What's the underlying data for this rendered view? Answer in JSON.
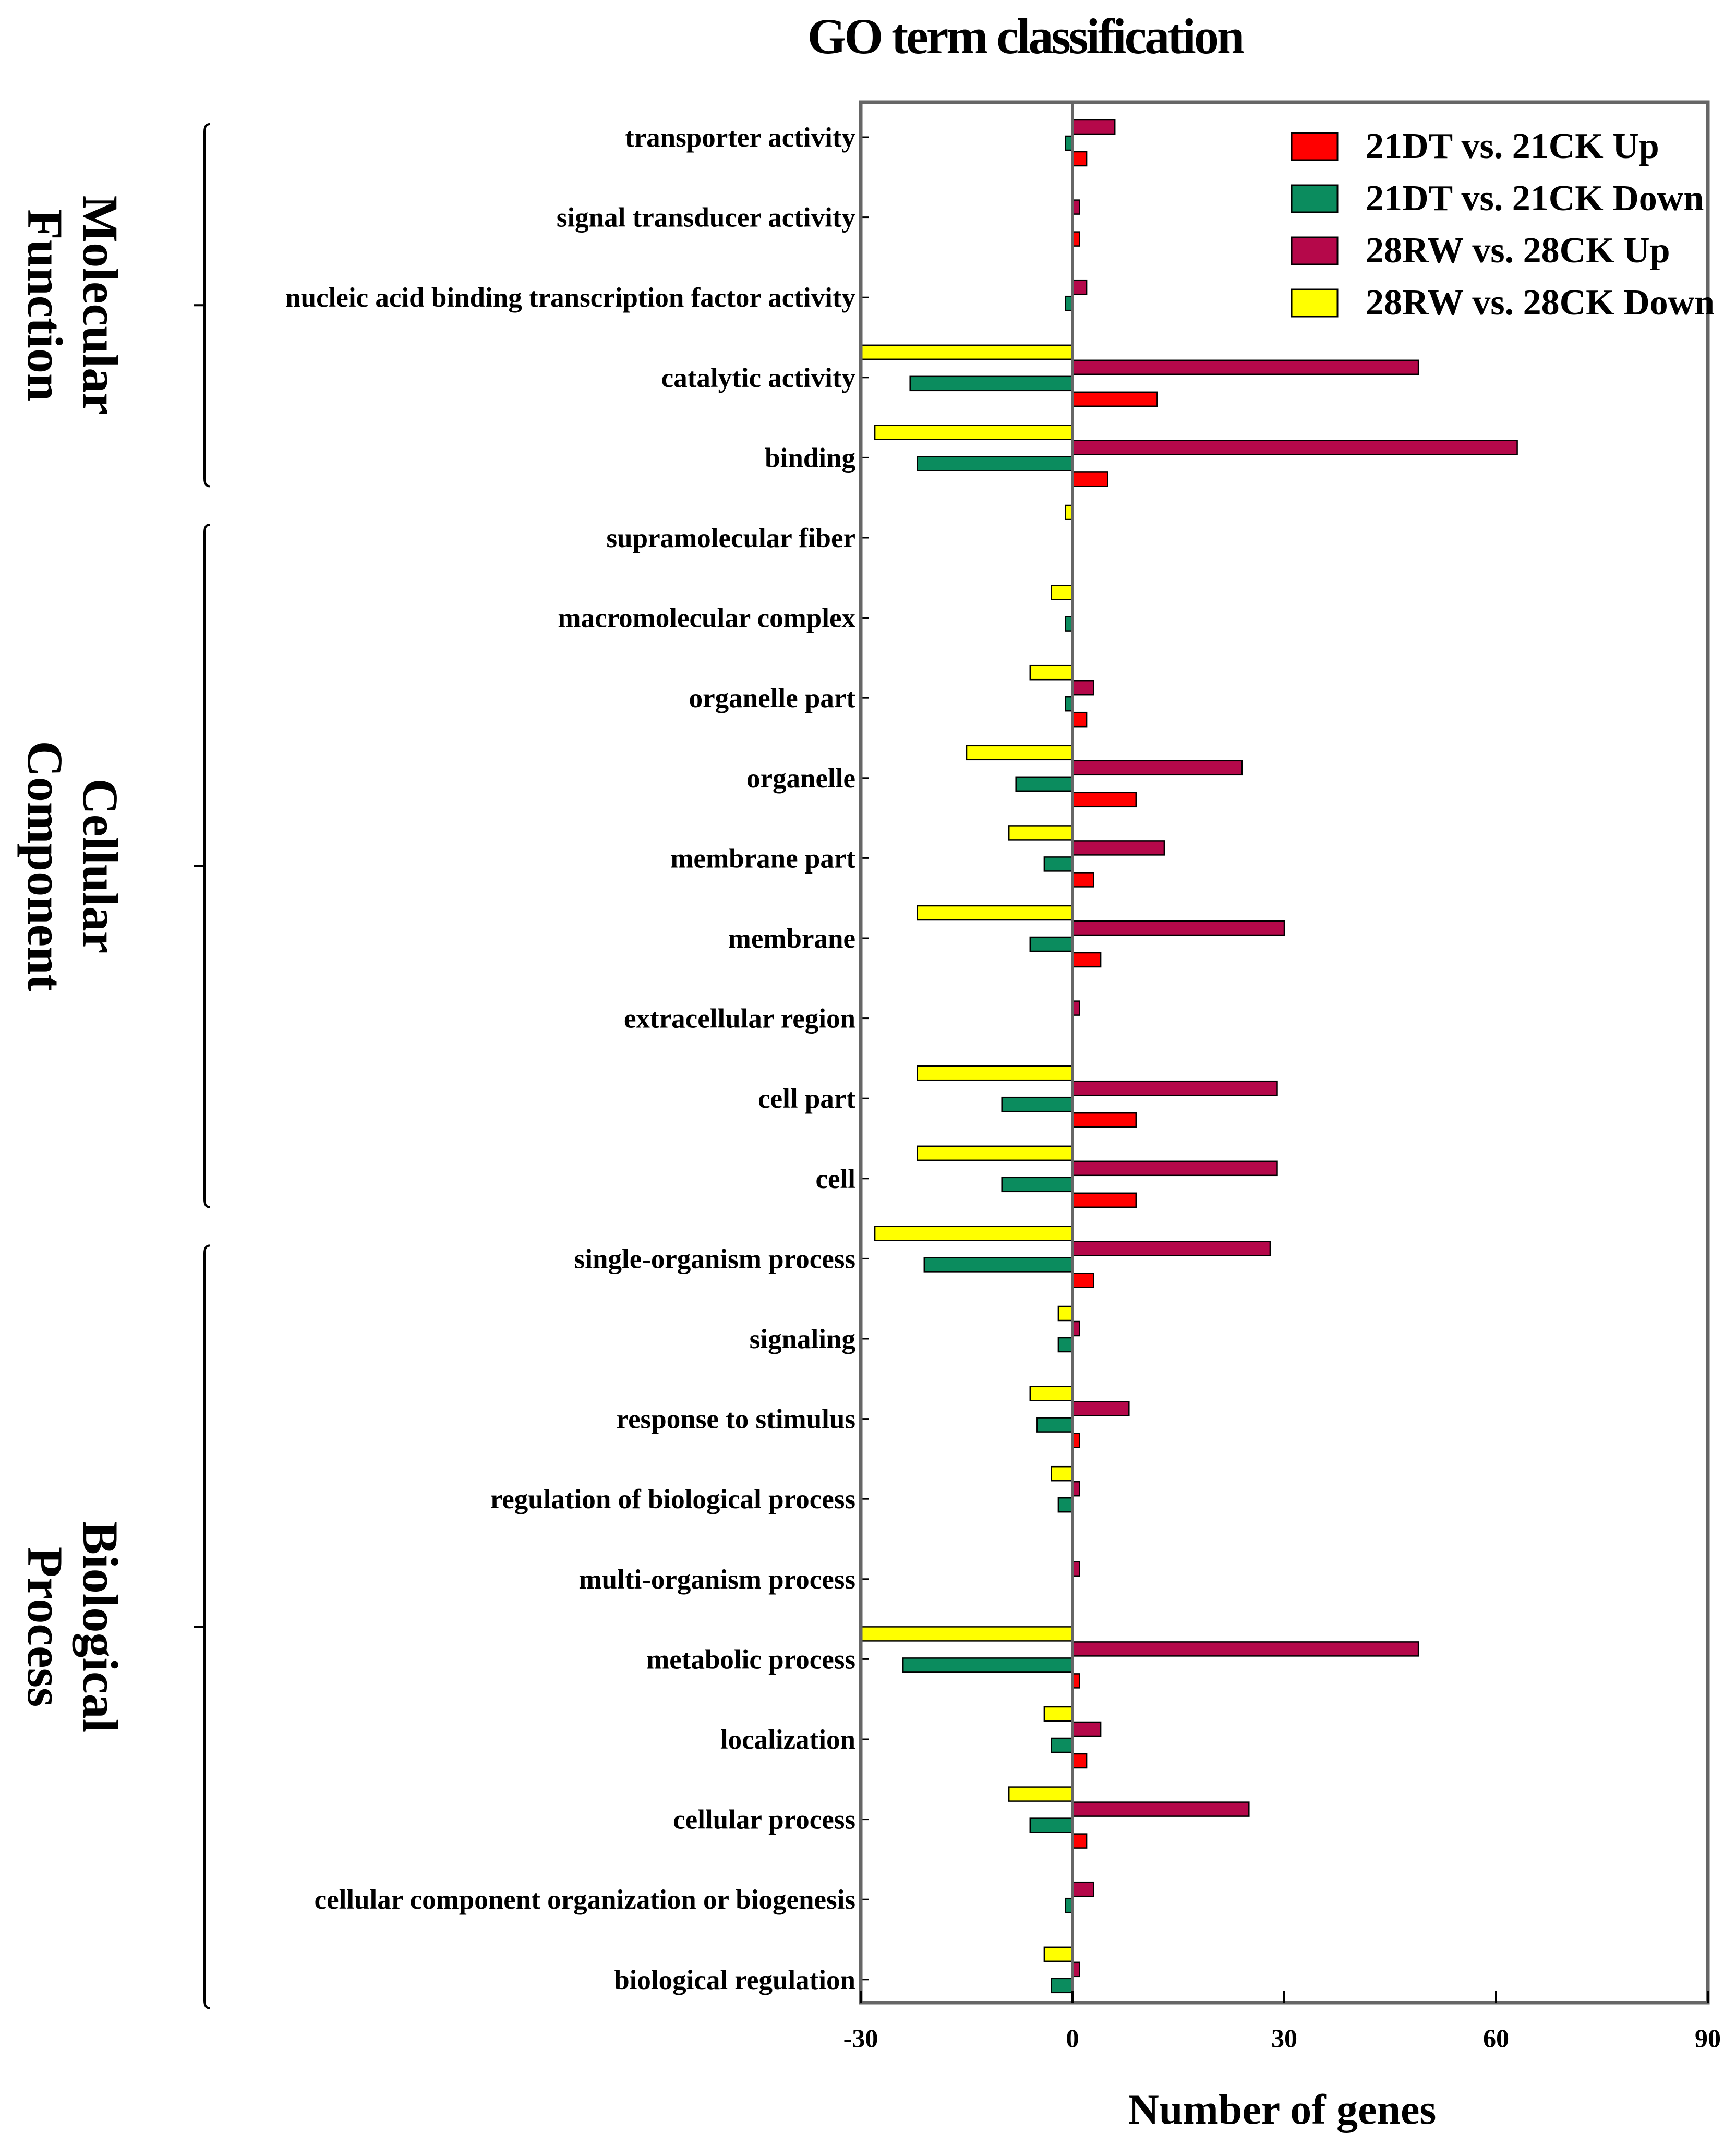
{
  "chart_data": {
    "type": "bar",
    "orientation": "horizontal",
    "title": "GO term classification",
    "xlabel": "Number of genes",
    "ylabel": "",
    "xlim": [
      -30,
      90
    ],
    "xticks": [
      -30,
      0,
      30,
      60,
      90
    ],
    "grid": false,
    "legend_position": "top-right",
    "groups": [
      {
        "name": "Molecular Function",
        "lines": [
          "Molecular",
          "Function"
        ],
        "first": 0,
        "last": 4
      },
      {
        "name": "Cellular Component",
        "lines": [
          "Cellular",
          "Component"
        ],
        "first": 5,
        "last": 13
      },
      {
        "name": "Biological Process",
        "lines": [
          "Biological",
          "Process"
        ],
        "first": 14,
        "last": 23
      }
    ],
    "categories": [
      "transporter activity",
      "signal transducer activity",
      "nucleic acid binding transcription factor activity",
      "catalytic activity",
      "binding",
      "supramolecular fiber",
      "macromolecular complex",
      "organelle part",
      "organelle",
      "membrane part",
      "membrane",
      "extracellular region",
      "cell part",
      "cell",
      "single-organism process",
      "signaling",
      "response to stimulus",
      "regulation of biological process",
      "multi-organism process",
      "metabolic process",
      "localization",
      "cellular process",
      "cellular component organization or biogenesis",
      "biological regulation"
    ],
    "series": [
      {
        "name": "28RW vs. 28CK Down",
        "color": "#ffff00",
        "values": [
          0,
          0,
          0,
          -30,
          -28,
          -1,
          -3,
          -6,
          -15,
          -9,
          -22,
          0,
          -22,
          -22,
          -28,
          -2,
          -6,
          -3,
          0,
          -30,
          -4,
          -9,
          0,
          -4
        ]
      },
      {
        "name": "28RW vs. 28CK Up",
        "color": "#b5084a",
        "values": [
          6,
          1,
          2,
          49,
          63,
          0,
          0,
          3,
          24,
          13,
          30,
          1,
          29,
          29,
          28,
          1,
          8,
          1,
          1,
          49,
          4,
          25,
          3,
          1
        ]
      },
      {
        "name": "21DT vs. 21CK Down",
        "color": "#0b8c5e",
        "values": [
          -1,
          0,
          -1,
          -23,
          -22,
          0,
          -1,
          -1,
          -8,
          -4,
          -6,
          0,
          -10,
          -10,
          -21,
          -2,
          -5,
          -2,
          0,
          -24,
          -3,
          -6,
          -1,
          -3
        ]
      },
      {
        "name": "21DT vs. 21CK Up",
        "color": "#ff0000",
        "values": [
          2,
          1,
          0,
          12,
          5,
          0,
          0,
          2,
          9,
          3,
          4,
          0,
          9,
          9,
          3,
          0,
          1,
          0,
          0,
          1,
          2,
          2,
          0,
          0
        ]
      }
    ],
    "legend_order": [
      "21DT vs. 21CK Up",
      "21DT vs. 21CK Down",
      "28RW vs. 28CK Up",
      "28RW vs. 28CK Down"
    ]
  }
}
